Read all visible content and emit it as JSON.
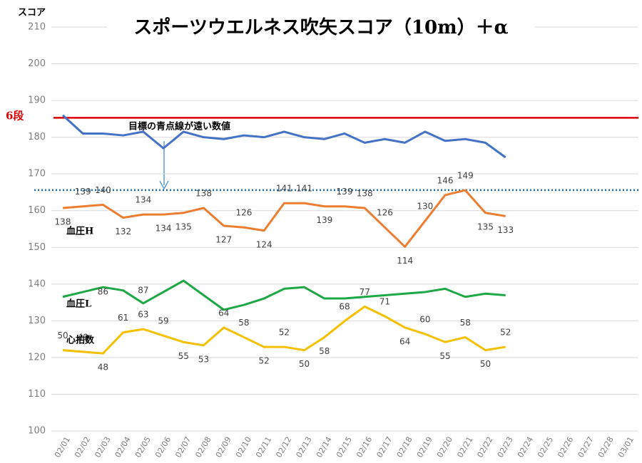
{
  "chart_data": {
    "type": "line",
    "title": "スポーツウエルネス吹矢スコア（10m）＋α",
    "y_axis_label": "スコア",
    "categories": [
      "02/01",
      "02/02",
      "02/03",
      "02/04",
      "02/05",
      "02/06",
      "02/07",
      "02/08",
      "02/09",
      "02/10",
      "02/11",
      "02/12",
      "02/13",
      "02/14",
      "02/15",
      "02/16",
      "02/17",
      "02/18",
      "02/19",
      "02/20",
      "02/21",
      "02/22",
      "02/23",
      "02/24",
      "02/25",
      "02/26",
      "02/27",
      "02/28",
      "03/01"
    ],
    "ylim": [
      100,
      210
    ],
    "yticks": [
      100,
      110,
      120,
      130,
      140,
      150,
      160,
      170,
      180,
      190,
      200,
      210
    ],
    "grid": true,
    "y2lim": [
      0,
      250
    ],
    "series": [
      {
        "color": "#4472c4",
        "values": [
          186,
          181,
          181,
          180.5,
          181.5,
          177,
          181.5,
          180,
          179.5,
          180.5,
          180,
          181.5,
          180,
          179.5,
          181,
          178.5,
          179.5,
          178.5,
          181.5,
          179,
          179.5,
          178.5,
          174.5,
          null,
          null,
          null,
          null,
          null,
          null
        ]
      },
      {
        "name": "血圧H",
        "color": "#ed7d31",
        "axis": "y2",
        "show_labels": true,
        "values": [
          138,
          139,
          140,
          132,
          134,
          134,
          135,
          138,
          127,
          126,
          124,
          141,
          141,
          139,
          139,
          138,
          126,
          114,
          130,
          146,
          149,
          135,
          133,
          null,
          null,
          null,
          null,
          null,
          null
        ]
      },
      {
        "name": "血圧L",
        "color": "#1ea845",
        "axis": "y2",
        "show_labels": false,
        "values": [
          83,
          86,
          89,
          87,
          79,
          86,
          93,
          84,
          75,
          78,
          82,
          88,
          89,
          82,
          82,
          83,
          84,
          85,
          86,
          88,
          83,
          85,
          84,
          null,
          null,
          null,
          null,
          null,
          null
        ]
      },
      {
        "name": "心拍数",
        "color": "#f5c000",
        "axis": "y2",
        "show_labels": true,
        "values": [
          50,
          49,
          48,
          61,
          63,
          59,
          55,
          53,
          64,
          58,
          52,
          52,
          50,
          58,
          68,
          77,
          71,
          64,
          60,
          55,
          58,
          50,
          52,
          null,
          null,
          null,
          null,
          null,
          null
        ]
      }
    ],
    "reference_lines": [
      {
        "label": "6段",
        "value": 185.3,
        "color": "#e00000",
        "style": "solid"
      },
      {
        "value": 165.6,
        "color": "#1f6fb0",
        "style": "dotted"
      }
    ],
    "annotations": [
      {
        "text": "目標の青点線が遠い数値"
      },
      {
        "text": "86"
      },
      {
        "text": "87"
      }
    ]
  }
}
